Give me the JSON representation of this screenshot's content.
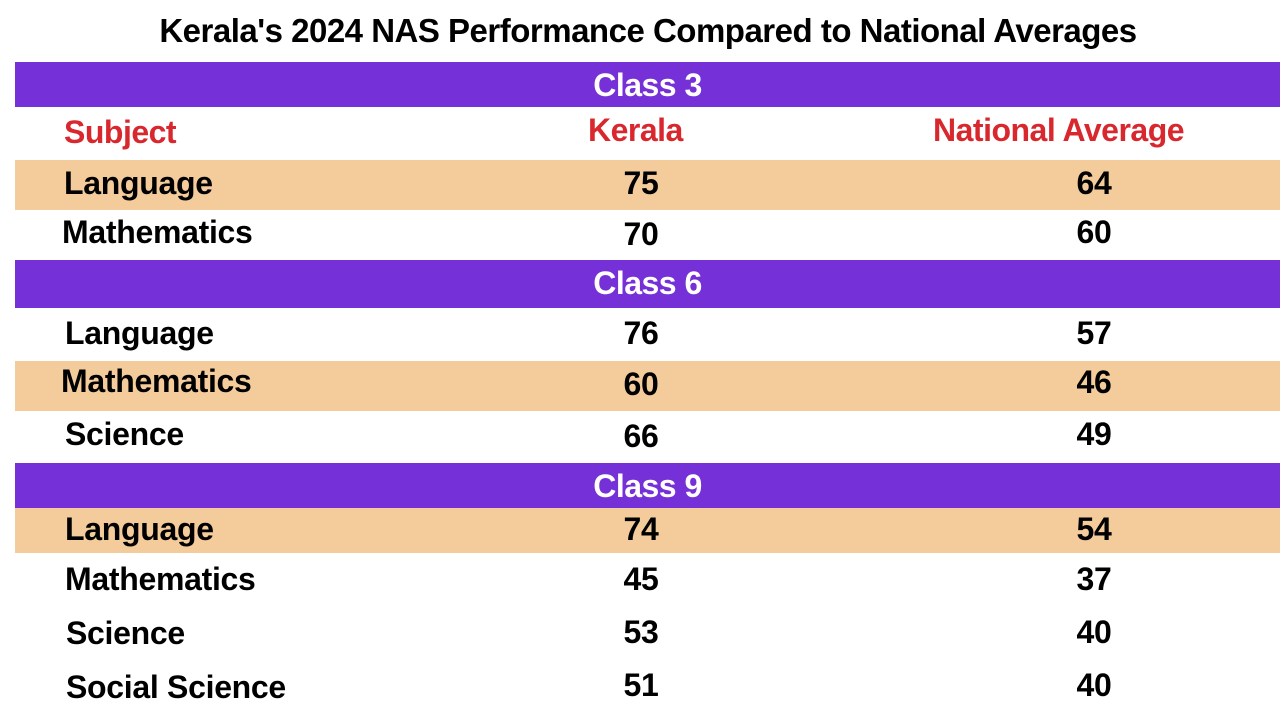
{
  "title": "Kerala's 2024 NAS Performance Compared to National Averages",
  "headers": {
    "subject": "Subject",
    "kerala": "Kerala",
    "national": "National Average"
  },
  "colors": {
    "band": "#7530d8",
    "row_highlight": "#f4cb9b",
    "header_text": "#d8282e"
  },
  "chart_data": {
    "type": "table",
    "title": "Kerala's 2024 NAS Performance Compared to National Averages",
    "columns": [
      "Subject",
      "Kerala",
      "National Average"
    ],
    "groups": [
      {
        "name": "Class 3",
        "rows": [
          {
            "subject": "Language",
            "kerala": 75,
            "national": 64
          },
          {
            "subject": "Mathematics",
            "kerala": 70,
            "national": 60
          }
        ]
      },
      {
        "name": "Class 6",
        "rows": [
          {
            "subject": "Language",
            "kerala": 76,
            "national": 57
          },
          {
            "subject": "Mathematics",
            "kerala": 60,
            "national": 46
          },
          {
            "subject": "Science",
            "kerala": 66,
            "national": 49
          }
        ]
      },
      {
        "name": "Class 9",
        "rows": [
          {
            "subject": "Language",
            "kerala": 74,
            "national": 54
          },
          {
            "subject": "Mathematics",
            "kerala": 45,
            "national": 37
          },
          {
            "subject": "Science",
            "kerala": 53,
            "national": 40
          },
          {
            "subject": "Social Science",
            "kerala": 51,
            "national": 40
          }
        ]
      }
    ]
  }
}
